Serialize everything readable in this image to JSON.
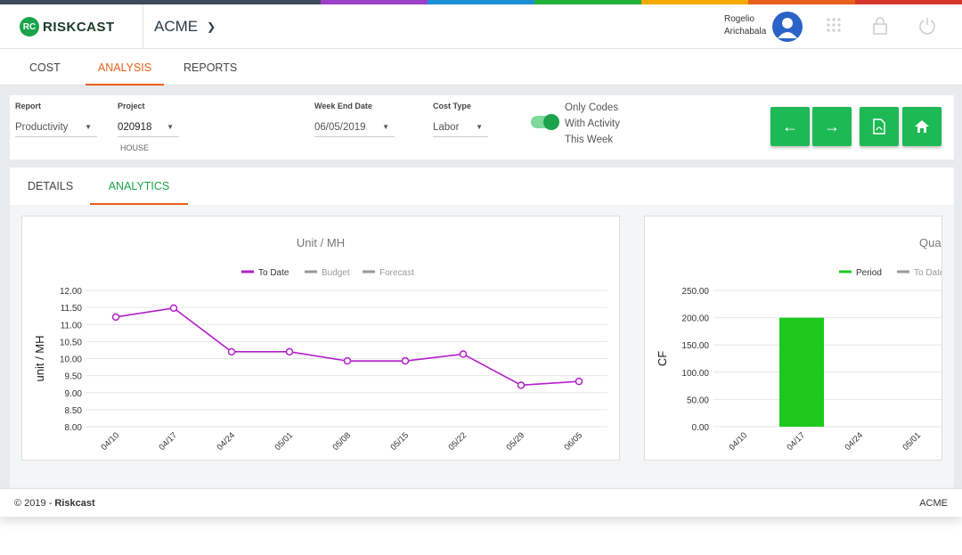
{
  "brand": {
    "name": "RISKCAST",
    "stripe_colors": [
      "#3d4a5c",
      "#9b3fc9",
      "#1a8fd8",
      "#23b13a",
      "#f5a800",
      "#e8601c",
      "#d8362b"
    ]
  },
  "header": {
    "company": "ACME",
    "user_first": "Rogelio",
    "user_last": "Arichabala",
    "icons": [
      "apps-grid-icon",
      "lock-icon",
      "power-icon"
    ]
  },
  "nav": {
    "tabs": [
      {
        "label": "COST"
      },
      {
        "label": "ANALYSIS"
      },
      {
        "label": "REPORTS"
      }
    ],
    "active": "ANALYSIS"
  },
  "filters": {
    "report_label": "Report",
    "report_value": "Productivity",
    "project_label": "Project",
    "project_value": "020918",
    "project_sub": "HOUSE",
    "week_label": "Week End Date",
    "week_value": "06/05/2019",
    "cost_label": "Cost Type",
    "cost_value": "Labor",
    "toggle_line1": "Only Codes",
    "toggle_line2": "With Activity",
    "toggle_line3": "This Week"
  },
  "subtabs": {
    "tabs": [
      {
        "label": "DETAILS"
      },
      {
        "label": "ANALYTICS"
      }
    ],
    "active": "ANALYTICS"
  },
  "chart_data": [
    {
      "type": "line",
      "title": "Unit / MH",
      "ylabel": "unit / MH",
      "categories": [
        "04/10",
        "04/17",
        "04/24",
        "05/01",
        "05/08",
        "05/15",
        "05/22",
        "05/29",
        "06/05"
      ],
      "series": [
        {
          "name": "To Date",
          "values": [
            11.22,
            11.48,
            10.2,
            10.2,
            9.93,
            9.93,
            10.13,
            9.22,
            9.33
          ],
          "color": "#b31ec9"
        }
      ],
      "legend": [
        {
          "name": "To Date",
          "color": "#b31ec9"
        },
        {
          "name": "Budget",
          "color": "#999999"
        },
        {
          "name": "Forecast",
          "color": "#999999"
        }
      ],
      "yticks": [
        "12.00",
        "11.50",
        "11.00",
        "10.50",
        "10.00",
        "9.50",
        "9.00",
        "8.50",
        "8.00"
      ],
      "ylim": [
        8,
        12
      ],
      "legend_position": "top-center",
      "grid": true
    },
    {
      "type": "bar",
      "title": "Qua",
      "ylabel": "CF",
      "categories": [
        "04/10",
        "04/17",
        "04/24",
        "05/01"
      ],
      "series": [
        {
          "name": "Period",
          "values": [
            0,
            200,
            0,
            0
          ],
          "color": "#1ec91e"
        }
      ],
      "legend": [
        {
          "name": "Period",
          "color": "#1ec91e"
        },
        {
          "name": "To Date",
          "color": "#999999"
        }
      ],
      "yticks": [
        "250.00",
        "200.00",
        "150.00",
        "100.00",
        "50.00",
        "0.00"
      ],
      "ylim": [
        0,
        250
      ],
      "legend_position": "top-center",
      "grid": true
    }
  ],
  "footer": {
    "copyright": "© 2019 - ",
    "brand": "Riskcast",
    "company": "ACME"
  }
}
